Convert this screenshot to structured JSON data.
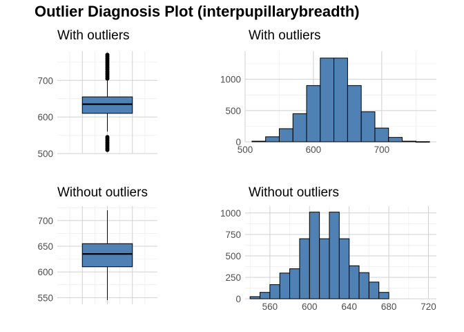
{
  "figure": {
    "title": "Outlier Diagnosis Plot (interpupillarybreadth)"
  },
  "colors": {
    "fill": "#4f81b4",
    "stroke": "#000000"
  },
  "chart_data": [
    {
      "id": "box_with",
      "type": "boxplot",
      "title": "With outliers",
      "ylim": [
        500,
        780
      ],
      "yticks": [
        500,
        600,
        700
      ],
      "stats": {
        "min": 560,
        "q1": 610,
        "median": 635,
        "q3": 655,
        "max": 700
      },
      "outliers_high": [
        705,
        710,
        715,
        720,
        725,
        730,
        735,
        740,
        745,
        750,
        755,
        760,
        765,
        770
      ],
      "outliers_low": [
        510,
        515,
        520,
        525,
        530,
        535,
        540,
        545
      ]
    },
    {
      "id": "hist_with",
      "type": "bar",
      "title": "With outliers",
      "xlim": [
        500,
        780
      ],
      "ylim": [
        0,
        1450
      ],
      "xticks": [
        500,
        600,
        700
      ],
      "yticks": [
        0,
        500,
        1000
      ],
      "bin_width": 20,
      "bins": [
        {
          "x0": 510,
          "x1": 530,
          "count": 10
        },
        {
          "x0": 530,
          "x1": 550,
          "count": 80
        },
        {
          "x0": 550,
          "x1": 570,
          "count": 210
        },
        {
          "x0": 570,
          "x1": 590,
          "count": 450
        },
        {
          "x0": 590,
          "x1": 610,
          "count": 900
        },
        {
          "x0": 610,
          "x1": 630,
          "count": 1340
        },
        {
          "x0": 630,
          "x1": 650,
          "count": 1340
        },
        {
          "x0": 650,
          "x1": 670,
          "count": 900
        },
        {
          "x0": 670,
          "x1": 690,
          "count": 480
        },
        {
          "x0": 690,
          "x1": 710,
          "count": 220
        },
        {
          "x0": 710,
          "x1": 730,
          "count": 70
        },
        {
          "x0": 730,
          "x1": 750,
          "count": 10
        },
        {
          "x0": 750,
          "x1": 770,
          "count": 2
        }
      ]
    },
    {
      "id": "box_without",
      "type": "boxplot",
      "title": "Without outliers",
      "ylim": [
        537,
        728
      ],
      "yticks": [
        550,
        600,
        650,
        700
      ],
      "stats": {
        "min": 545,
        "q1": 610,
        "median": 635,
        "q3": 655,
        "max": 720
      },
      "outliers_high": [],
      "outliers_low": []
    },
    {
      "id": "hist_without",
      "type": "bar",
      "title": "Without outliers",
      "xlim": [
        535,
        728
      ],
      "ylim": [
        0,
        1080
      ],
      "xticks": [
        560,
        600,
        640,
        680,
        720
      ],
      "yticks": [
        0,
        250,
        500,
        750,
        1000
      ],
      "bin_width": 10,
      "bins": [
        {
          "x0": 540,
          "x1": 550,
          "count": 25
        },
        {
          "x0": 550,
          "x1": 560,
          "count": 75
        },
        {
          "x0": 560,
          "x1": 570,
          "count": 165
        },
        {
          "x0": 570,
          "x1": 580,
          "count": 300
        },
        {
          "x0": 580,
          "x1": 590,
          "count": 350
        },
        {
          "x0": 590,
          "x1": 600,
          "count": 700
        },
        {
          "x0": 600,
          "x1": 610,
          "count": 1010
        },
        {
          "x0": 610,
          "x1": 620,
          "count": 700
        },
        {
          "x0": 620,
          "x1": 630,
          "count": 1010
        },
        {
          "x0": 630,
          "x1": 640,
          "count": 700
        },
        {
          "x0": 640,
          "x1": 650,
          "count": 385
        },
        {
          "x0": 650,
          "x1": 660,
          "count": 305
        },
        {
          "x0": 660,
          "x1": 670,
          "count": 195
        },
        {
          "x0": 670,
          "x1": 680,
          "count": 75
        }
      ]
    }
  ]
}
